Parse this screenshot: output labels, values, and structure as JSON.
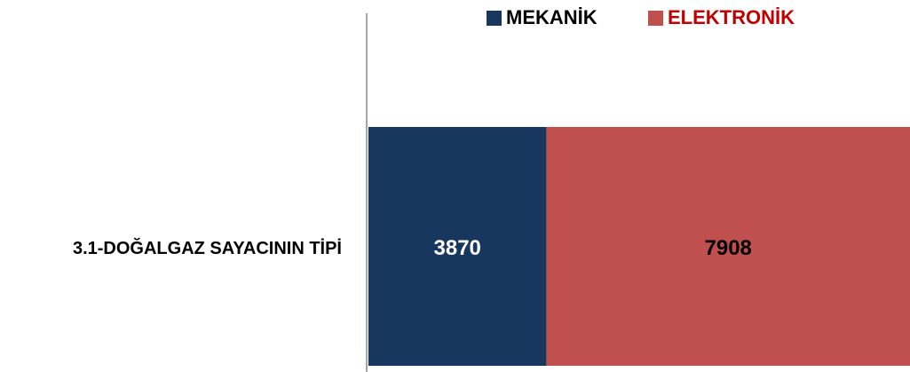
{
  "chart_data": {
    "type": "stacked-bar-horizontal",
    "categories": [
      "3.1-DOĞALGAZ SAYACININ TİPİ"
    ],
    "series": [
      {
        "name": "MEKANİK",
        "color": "#17375e",
        "legend_text_color": "#000000",
        "label_color": "#ffffff",
        "values": [
          3870
        ]
      },
      {
        "name": "ELEKTRONİK",
        "color": "#c0504d",
        "legend_text_color": "#c00000",
        "label_color": "#000000",
        "values": [
          7908
        ]
      }
    ],
    "legend": "top"
  }
}
